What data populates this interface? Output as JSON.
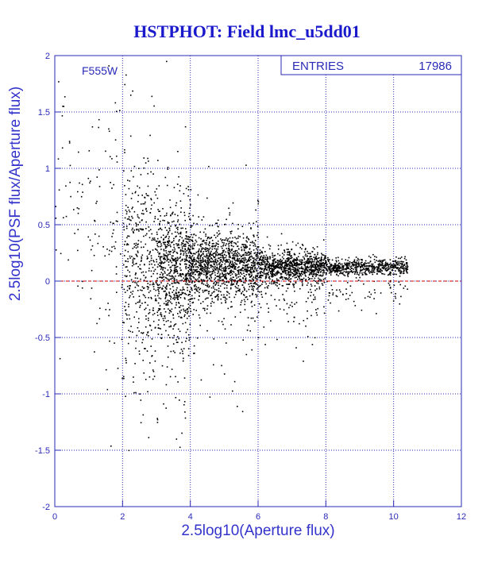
{
  "chart_data": {
    "type": "scatter",
    "title": "HSTPHOT: Field lmc_u5dd01",
    "xlabel": "2.5log10(Aperture flux)",
    "ylabel": "2.5log10(PSF flux/Aperture flux)",
    "xlim": [
      0,
      12
    ],
    "ylim": [
      -2,
      2
    ],
    "xticks": [
      "0",
      "2",
      "4",
      "6",
      "8",
      "10",
      "12"
    ],
    "yticks": [
      "-2",
      "-1.5",
      "-1",
      "-0.5",
      "0",
      "0.5",
      "1",
      "1.5",
      "2"
    ],
    "grid": true,
    "filter_label": "F555W",
    "stats_box": {
      "label": "ENTRIES",
      "value": "17986"
    },
    "reference_line": {
      "y": 0,
      "color": "#cc0000",
      "style": "dashed"
    },
    "point_color": "#000000",
    "distribution": [
      {
        "x_range": [
          0,
          1
        ],
        "y_mean": 0.9,
        "y_spread": 0.6,
        "fraction": 0.01
      },
      {
        "x_range": [
          1,
          2
        ],
        "y_mean": 0.5,
        "y_spread": 0.6,
        "fraction": 0.02
      },
      {
        "x_range": [
          2,
          3
        ],
        "y_mean": 0.1,
        "y_spread": 0.45,
        "fraction": 0.1
      },
      {
        "x_range": [
          3,
          4
        ],
        "y_mean": 0.1,
        "y_spread": 0.3,
        "fraction": 0.18
      },
      {
        "x_range": [
          4,
          6
        ],
        "y_mean": 0.14,
        "y_spread": 0.15,
        "fraction": 0.3
      },
      {
        "x_range": [
          6,
          8
        ],
        "y_mean": 0.13,
        "y_spread": 0.07,
        "fraction": 0.24
      },
      {
        "x_range": [
          8,
          10.4
        ],
        "y_mean": 0.13,
        "y_spread": 0.035,
        "fraction": 0.15
      }
    ]
  }
}
